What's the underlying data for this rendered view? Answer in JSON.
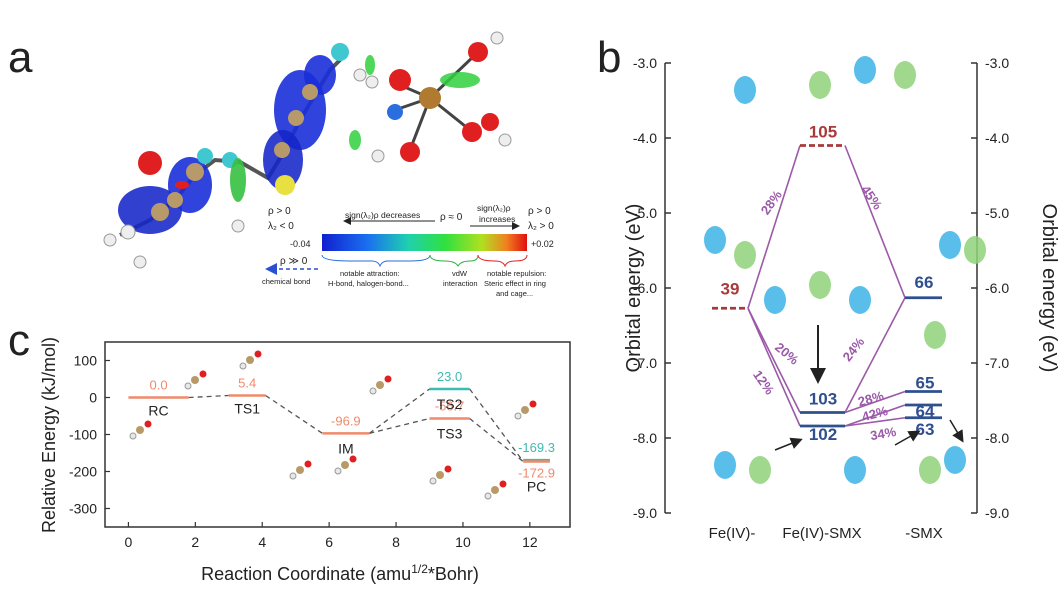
{
  "panel_labels": {
    "a": "a",
    "b": "b",
    "c": "c"
  },
  "colors": {
    "purple": "#9b59a8",
    "red": "#a83a3a",
    "blue": "#2f4f8f",
    "teal": "#3dbcb0",
    "salmon": "#f08a6a",
    "axis": "#333333",
    "dash": "#555555"
  },
  "nci_legend": {
    "left_rho": "ρ > 0",
    "left_lambda": "λ₂ < 0",
    "sign_left": "sign(λ₂)ρ decreases",
    "mid_rho": "ρ ≈ 0",
    "sign_right": "sign(λ₂)ρ",
    "sign_right2": "increases",
    "right_rho": "ρ > 0",
    "right_lambda": "λ₂ > 0",
    "min_value": "-0.04",
    "max_value": "+0.02",
    "chem_rho": "ρ ≫ 0",
    "chem_label": "chemical bond",
    "attraction_1": "notable attraction:",
    "attraction_2": "H-bond, halogen-bond...",
    "vdw_1": "vdW",
    "vdw_2": "interaction",
    "repulsion_1": "notable repulsion:",
    "repulsion_2": "Steric effect in ring",
    "repulsion_3": "and cage..."
  },
  "chart_data": [
    {
      "panel": "b",
      "type": "orbital-diagram",
      "ylabel_left": "Orbital energy (eV)",
      "ylabel_right": "Orbital energy (eV)",
      "ylim": [
        -9.0,
        -3.0
      ],
      "yticks": [
        -3.0,
        -4.0,
        -5.0,
        -6.0,
        -7.0,
        -8.0,
        -9.0
      ],
      "ytick_labels": [
        "-3.0",
        "-4.0",
        "-5.0",
        "-6.0",
        "-7.0",
        "-8.0",
        "-9.0"
      ],
      "columns": [
        "Fe(IV)-",
        "Fe(IV)-SMX",
        "-SMX"
      ],
      "levels": [
        {
          "label": "105",
          "column": "Fe(IV)-SMX",
          "energy": -4.1,
          "style": "dashed",
          "color": "#a83a3a"
        },
        {
          "label": "39",
          "column": "Fe(IV)-",
          "energy": -6.27,
          "style": "dashed",
          "color": "#a83a3a"
        },
        {
          "label": "66",
          "column": "-SMX",
          "energy": -6.13,
          "style": "solid",
          "color": "#2f4f8f"
        },
        {
          "label": "103",
          "column": "Fe(IV)-SMX",
          "energy": -7.66,
          "style": "solid",
          "color": "#2f4f8f"
        },
        {
          "label": "102",
          "column": "Fe(IV)-SMX",
          "energy": -7.84,
          "style": "solid",
          "color": "#2f4f8f"
        },
        {
          "label": "65",
          "column": "-SMX",
          "energy": -7.38,
          "style": "solid",
          "color": "#2f4f8f"
        },
        {
          "label": "64",
          "column": "-SMX",
          "energy": -7.56,
          "style": "solid",
          "color": "#2f4f8f"
        },
        {
          "label": "63",
          "column": "-SMX",
          "energy": -7.73,
          "style": "solid",
          "color": "#2f4f8f"
        }
      ],
      "contributions": [
        {
          "label": "28%",
          "from": "39",
          "to": "105"
        },
        {
          "label": "45%",
          "from": "66",
          "to": "105"
        },
        {
          "label": "20%",
          "from": "39",
          "to": "103"
        },
        {
          "label": "12%",
          "from": "39",
          "to": "102"
        },
        {
          "label": "24%",
          "from": "66",
          "to": "103"
        },
        {
          "label": "28%",
          "from": "65",
          "to": "103"
        },
        {
          "label": "42%",
          "from": "64",
          "to": "102"
        },
        {
          "label": "34%",
          "from": "63",
          "to": "102"
        }
      ]
    },
    {
      "panel": "c",
      "type": "line",
      "xlabel": "Reaction Coordinate",
      "xlabel_unit_prefix": "amu",
      "xlabel_unit_sup": "1/2",
      "xlabel_unit_suffix": "*Bohr",
      "ylabel": "Relative Energy (kJ/mol)",
      "xlim": [
        -0.7,
        13.2
      ],
      "ylim": [
        -350,
        150
      ],
      "xticks": [
        0,
        2,
        4,
        6,
        8,
        10,
        12
      ],
      "xtick_labels": [
        "0",
        "2",
        "4",
        "6",
        "8",
        "10",
        "12"
      ],
      "yticks": [
        100,
        0,
        -100,
        -200,
        -300
      ],
      "ytick_labels": [
        "100",
        "0",
        "-100",
        "-200",
        "-300"
      ],
      "states": [
        {
          "name": "RC",
          "x0": 0.0,
          "x1": 1.8,
          "energy": 0.0,
          "value_label": "0.0",
          "color": "#f08a6a"
        },
        {
          "name": "TS1",
          "x0": 3.0,
          "x1": 4.1,
          "energy": 5.4,
          "value_label": "5.4",
          "color": "#f08a6a"
        },
        {
          "name": "IM",
          "x0": 5.8,
          "x1": 7.2,
          "energy": -96.9,
          "value_label": "-96.9",
          "color": "#f08a6a"
        },
        {
          "name": "TS2",
          "x0": 9.0,
          "x1": 10.2,
          "energy": 23.0,
          "value_label": "23.0",
          "color": "#3dbcb0"
        },
        {
          "name": "TS3",
          "x0": 9.0,
          "x1": 10.2,
          "energy": -56.7,
          "value_label": "-56.7",
          "color": "#f08a6a"
        },
        {
          "name": "PC",
          "x0": 11.8,
          "x1": 12.6,
          "energy": -169.3,
          "value_label": "-169.3",
          "color": "#3dbcb0"
        },
        {
          "name": "PC",
          "x0": 11.8,
          "x1": 12.6,
          "energy": -172.9,
          "value_label": "-172.9",
          "color": "#f08a6a"
        }
      ],
      "paths": [
        [
          "RC",
          "TS1",
          "IM",
          "TS2",
          "PC"
        ],
        [
          "IM",
          "TS3",
          "PC"
        ]
      ]
    }
  ]
}
